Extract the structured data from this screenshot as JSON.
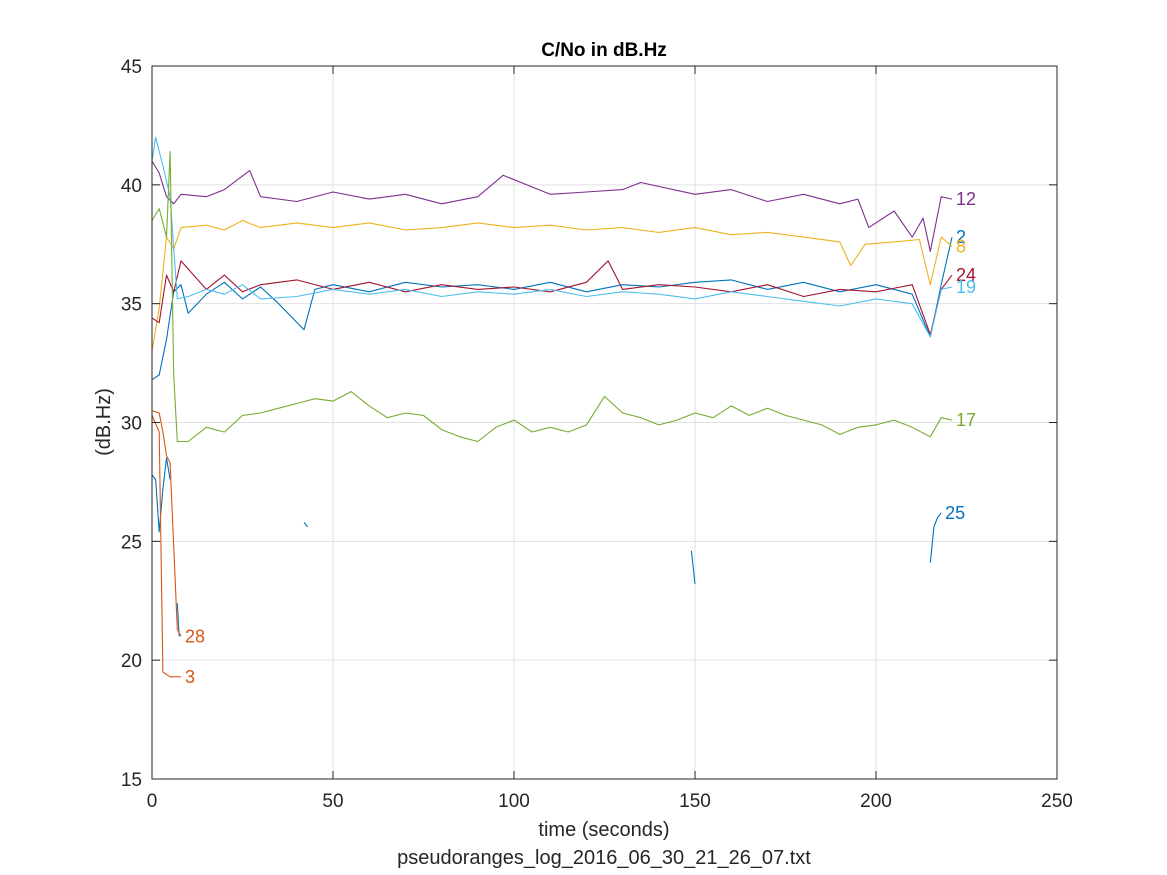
{
  "chart_data": {
    "type": "line",
    "title": "C/No in dB.Hz",
    "xlabel": "time (seconds)",
    "ylabel": "(dB.Hz)",
    "subtitle": "pseudoranges_log_2016_06_30_21_26_07.txt",
    "xlim": [
      0,
      250
    ],
    "ylim": [
      15,
      45
    ],
    "xticks": [
      0,
      50,
      100,
      150,
      200,
      250
    ],
    "yticks": [
      15,
      20,
      25,
      30,
      35,
      40,
      45
    ],
    "grid": true,
    "series": [
      {
        "name": "12",
        "color": "#7E2F8E",
        "segments": [
          [
            [
              0,
              41.0
            ],
            [
              2,
              40.5
            ],
            [
              4,
              39.5
            ],
            [
              6,
              39.2
            ],
            [
              8,
              39.6
            ],
            [
              15,
              39.5
            ],
            [
              20,
              39.8
            ],
            [
              27,
              40.6
            ],
            [
              30,
              39.5
            ],
            [
              40,
              39.3
            ],
            [
              50,
              39.7
            ],
            [
              60,
              39.4
            ],
            [
              70,
              39.6
            ],
            [
              80,
              39.2
            ],
            [
              90,
              39.5
            ],
            [
              97,
              40.4
            ],
            [
              110,
              39.6
            ],
            [
              120,
              39.7
            ],
            [
              130,
              39.8
            ],
            [
              135,
              40.1
            ],
            [
              150,
              39.6
            ],
            [
              160,
              39.8
            ],
            [
              170,
              39.3
            ],
            [
              180,
              39.6
            ],
            [
              190,
              39.2
            ],
            [
              195,
              39.4
            ],
            [
              198,
              38.2
            ],
            [
              205,
              38.9
            ],
            [
              210,
              37.8
            ],
            [
              213,
              38.6
            ],
            [
              215,
              37.2
            ],
            [
              218,
              39.5
            ],
            [
              221,
              39.4
            ]
          ]
        ]
      },
      {
        "name": "2",
        "color": "#0072BD",
        "segments": [
          [
            [
              0,
              31.8
            ],
            [
              2,
              32.0
            ],
            [
              4,
              33.5
            ],
            [
              6,
              35.5
            ],
            [
              8,
              35.8
            ],
            [
              10,
              34.6
            ],
            [
              15,
              35.4
            ],
            [
              20,
              35.9
            ],
            [
              25,
              35.2
            ],
            [
              30,
              35.7
            ],
            [
              35,
              35.0
            ],
            [
              42,
              33.9
            ],
            [
              45,
              35.6
            ],
            [
              50,
              35.8
            ],
            [
              60,
              35.5
            ],
            [
              70,
              35.9
            ],
            [
              80,
              35.7
            ],
            [
              90,
              35.8
            ],
            [
              100,
              35.6
            ],
            [
              110,
              35.9
            ],
            [
              120,
              35.5
            ],
            [
              130,
              35.8
            ],
            [
              140,
              35.7
            ],
            [
              150,
              35.9
            ],
            [
              160,
              36.0
            ],
            [
              170,
              35.6
            ],
            [
              180,
              35.9
            ],
            [
              190,
              35.5
            ],
            [
              200,
              35.8
            ],
            [
              210,
              35.4
            ],
            [
              215,
              33.6
            ],
            [
              218,
              35.8
            ],
            [
              221,
              37.8
            ]
          ]
        ]
      },
      {
        "name": "8",
        "color": "#EDB120",
        "segments": [
          [
            [
              0,
              33.0
            ],
            [
              2,
              34.8
            ],
            [
              4,
              37.8
            ],
            [
              6,
              37.3
            ],
            [
              8,
              38.2
            ],
            [
              15,
              38.3
            ],
            [
              20,
              38.1
            ],
            [
              25,
              38.5
            ],
            [
              30,
              38.2
            ],
            [
              40,
              38.4
            ],
            [
              50,
              38.2
            ],
            [
              60,
              38.4
            ],
            [
              70,
              38.1
            ],
            [
              80,
              38.2
            ],
            [
              90,
              38.4
            ],
            [
              100,
              38.2
            ],
            [
              110,
              38.3
            ],
            [
              120,
              38.1
            ],
            [
              130,
              38.2
            ],
            [
              140,
              38.0
            ],
            [
              150,
              38.2
            ],
            [
              160,
              37.9
            ],
            [
              170,
              38.0
            ],
            [
              180,
              37.8
            ],
            [
              190,
              37.6
            ],
            [
              193,
              36.6
            ],
            [
              197,
              37.5
            ],
            [
              205,
              37.6
            ],
            [
              212,
              37.7
            ],
            [
              215,
              35.8
            ],
            [
              218,
              37.8
            ],
            [
              221,
              37.4
            ]
          ]
        ]
      },
      {
        "name": "24",
        "color": "#A2142F",
        "segments": [
          [
            [
              0,
              34.4
            ],
            [
              2,
              34.2
            ],
            [
              4,
              36.2
            ],
            [
              6,
              35.5
            ],
            [
              8,
              36.8
            ],
            [
              15,
              35.6
            ],
            [
              20,
              36.2
            ],
            [
              25,
              35.5
            ],
            [
              30,
              35.8
            ],
            [
              40,
              36.0
            ],
            [
              50,
              35.6
            ],
            [
              60,
              35.9
            ],
            [
              70,
              35.5
            ],
            [
              80,
              35.8
            ],
            [
              90,
              35.6
            ],
            [
              100,
              35.7
            ],
            [
              110,
              35.5
            ],
            [
              120,
              35.9
            ],
            [
              126,
              36.8
            ],
            [
              130,
              35.6
            ],
            [
              140,
              35.8
            ],
            [
              150,
              35.7
            ],
            [
              160,
              35.5
            ],
            [
              170,
              35.8
            ],
            [
              180,
              35.3
            ],
            [
              190,
              35.6
            ],
            [
              200,
              35.5
            ],
            [
              210,
              35.8
            ],
            [
              215,
              33.7
            ],
            [
              218,
              35.6
            ],
            [
              221,
              36.2
            ]
          ]
        ]
      },
      {
        "name": "19",
        "color": "#4DBEEE",
        "segments": [
          [
            [
              0,
              41.0
            ],
            [
              1,
              42.0
            ],
            [
              3,
              40.8
            ],
            [
              5,
              39.5
            ],
            [
              7,
              35.2
            ],
            [
              10,
              35.3
            ],
            [
              15,
              35.6
            ],
            [
              20,
              35.4
            ],
            [
              25,
              35.8
            ],
            [
              30,
              35.2
            ],
            [
              40,
              35.3
            ],
            [
              50,
              35.6
            ],
            [
              60,
              35.4
            ],
            [
              70,
              35.6
            ],
            [
              80,
              35.3
            ],
            [
              90,
              35.5
            ],
            [
              100,
              35.4
            ],
            [
              110,
              35.6
            ],
            [
              120,
              35.3
            ],
            [
              130,
              35.5
            ],
            [
              140,
              35.4
            ],
            [
              150,
              35.2
            ],
            [
              160,
              35.5
            ],
            [
              170,
              35.3
            ],
            [
              180,
              35.1
            ],
            [
              190,
              34.9
            ],
            [
              200,
              35.2
            ],
            [
              210,
              35.0
            ],
            [
              215,
              33.6
            ],
            [
              218,
              35.6
            ],
            [
              221,
              35.7
            ]
          ]
        ]
      },
      {
        "name": "17",
        "color": "#77AC30",
        "segments": [
          [
            [
              0,
              38.5
            ],
            [
              2,
              39.0
            ],
            [
              4,
              37.8
            ],
            [
              5,
              41.4
            ],
            [
              6,
              32.0
            ],
            [
              7,
              29.2
            ],
            [
              10,
              29.2
            ],
            [
              15,
              29.8
            ],
            [
              20,
              29.6
            ],
            [
              25,
              30.3
            ],
            [
              30,
              30.4
            ],
            [
              35,
              30.6
            ],
            [
              40,
              30.8
            ],
            [
              45,
              31.0
            ],
            [
              50,
              30.9
            ],
            [
              55,
              31.3
            ],
            [
              60,
              30.7
            ],
            [
              65,
              30.2
            ],
            [
              70,
              30.4
            ],
            [
              75,
              30.3
            ],
            [
              80,
              29.7
            ],
            [
              85,
              29.4
            ],
            [
              90,
              29.2
            ],
            [
              95,
              29.8
            ],
            [
              100,
              30.1
            ],
            [
              105,
              29.6
            ],
            [
              110,
              29.8
            ],
            [
              115,
              29.6
            ],
            [
              120,
              29.9
            ],
            [
              125,
              31.1
            ],
            [
              130,
              30.4
            ],
            [
              135,
              30.2
            ],
            [
              140,
              29.9
            ],
            [
              145,
              30.1
            ],
            [
              150,
              30.4
            ],
            [
              155,
              30.2
            ],
            [
              160,
              30.7
            ],
            [
              165,
              30.3
            ],
            [
              170,
              30.6
            ],
            [
              175,
              30.3
            ],
            [
              180,
              30.1
            ],
            [
              185,
              29.9
            ],
            [
              190,
              29.5
            ],
            [
              195,
              29.8
            ],
            [
              200,
              29.9
            ],
            [
              205,
              30.1
            ],
            [
              210,
              29.8
            ],
            [
              215,
              29.4
            ],
            [
              218,
              30.2
            ],
            [
              221,
              30.1
            ]
          ]
        ]
      },
      {
        "name": "25",
        "color": "#0072BD",
        "segments": [
          [
            [
              0,
              27.8
            ],
            [
              1,
              27.6
            ],
            [
              2,
              25.4
            ],
            [
              3,
              27.2
            ],
            [
              4,
              28.5
            ],
            [
              5,
              27.6
            ]
          ],
          [
            [
              7,
              22.4
            ],
            [
              7.5,
              21.0
            ]
          ],
          [
            [
              42,
              25.8
            ],
            [
              43,
              25.6
            ]
          ],
          [
            [
              149,
              24.6
            ],
            [
              150,
              23.2
            ]
          ],
          [
            [
              215,
              24.1
            ],
            [
              216,
              25.6
            ],
            [
              217,
              26.0
            ],
            [
              218,
              26.2
            ]
          ]
        ]
      },
      {
        "name": "28",
        "color": "#D95319",
        "segments": [
          [
            [
              0,
              30.5
            ],
            [
              2,
              30.4
            ],
            [
              3,
              29.6
            ],
            [
              4,
              28.6
            ],
            [
              5,
              28.3
            ],
            [
              6,
              24.8
            ],
            [
              7,
              21.3
            ],
            [
              8,
              21.0
            ]
          ]
        ]
      },
      {
        "name": "3",
        "color": "#D95319",
        "segments": [
          [
            [
              0,
              30.3
            ],
            [
              2,
              29.6
            ],
            [
              3,
              19.5
            ],
            [
              4,
              19.4
            ],
            [
              5,
              19.3
            ],
            [
              8,
              19.3
            ]
          ]
        ]
      }
    ]
  }
}
